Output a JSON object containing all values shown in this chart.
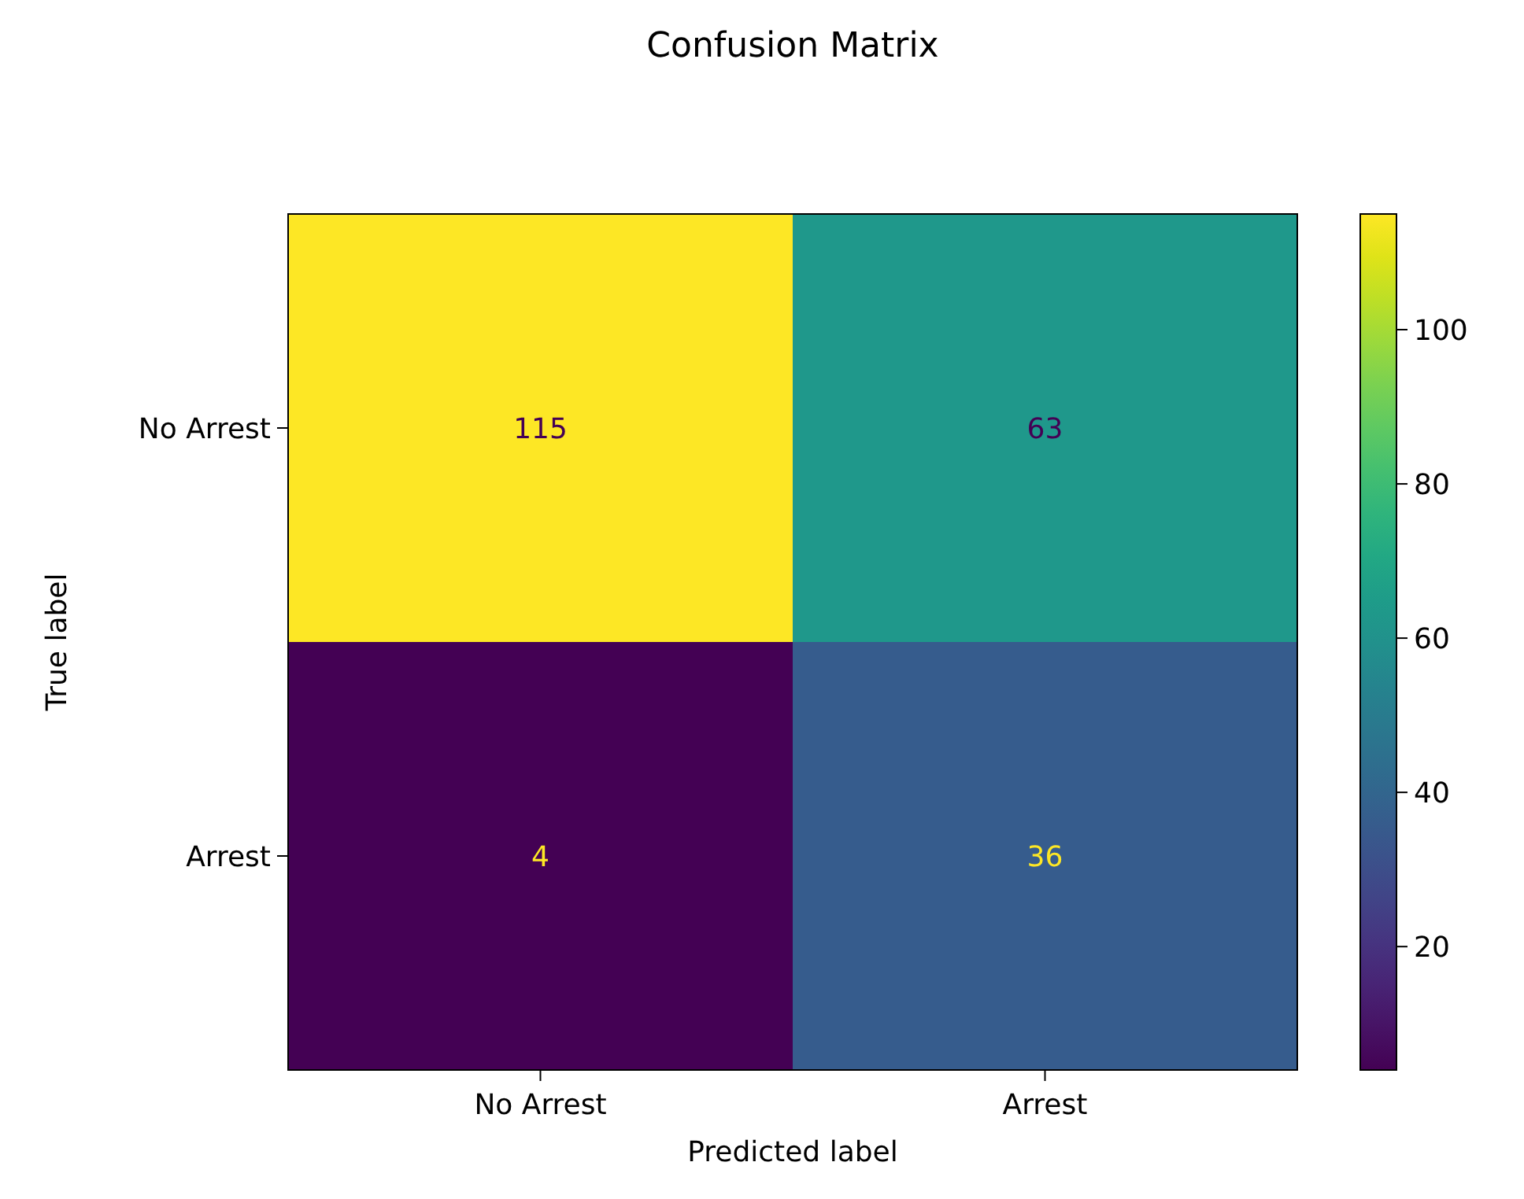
{
  "chart_data": {
    "type": "heatmap",
    "title": "Confusion Matrix",
    "xlabel": "Predicted label",
    "ylabel": "True label",
    "categories": [
      "No Arrest",
      "Arrest"
    ],
    "y_categories": [
      "No Arrest",
      "Arrest"
    ],
    "cells": [
      [
        115,
        63
      ],
      [
        4,
        36
      ]
    ],
    "clim": [
      4,
      115
    ],
    "cticks": [
      20,
      40,
      60,
      80,
      100
    ],
    "data_labels": true
  }
}
